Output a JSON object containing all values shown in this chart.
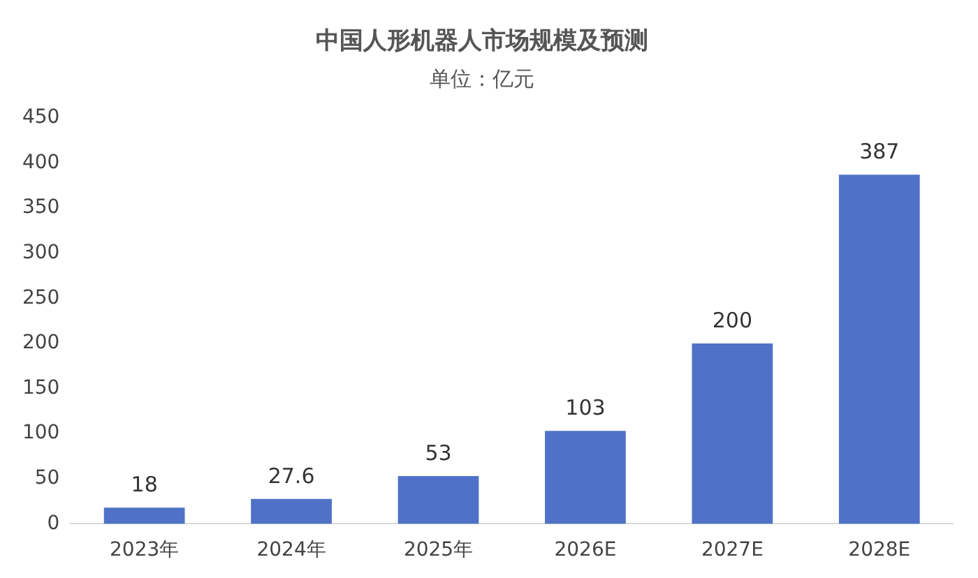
{
  "chart_data": {
    "type": "bar",
    "title": "中国人形机器人市场规模及预测",
    "subtitle": "单位：亿元",
    "categories": [
      "2023年",
      "2024年",
      "2025年",
      "2026E",
      "2027E",
      "2028E"
    ],
    "values": [
      18,
      27.6,
      53,
      103,
      200,
      387
    ],
    "color": "#4f72c8",
    "ylim": [
      0,
      450
    ],
    "yticks": [
      0,
      50,
      100,
      150,
      200,
      250,
      300,
      350,
      400,
      450
    ],
    "grid": false,
    "data_labels": true
  }
}
